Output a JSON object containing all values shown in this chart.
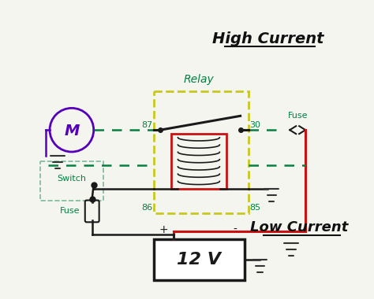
{
  "background_color": "#f5f5f0",
  "high_current_label": "High Current",
  "low_current_label": "Low Current",
  "relay_label": "Relay",
  "battery_label": "12 V",
  "switch_label": "Switch",
  "fuse_label_bottom": "Fuse",
  "fuse_label_top": "Fuse",
  "pin_87": "87",
  "pin_30": "30",
  "pin_86": "86",
  "pin_85": "85",
  "wire_high_color": "#008040",
  "wire_black_color": "#1a1a1a",
  "wire_red_color": "#cc1111",
  "wire_purple_color": "#5500bb",
  "relay_box_color": "#c8c820",
  "motor_color": "#5500bb",
  "coil_color": "#cc1111",
  "label_green": "#008040",
  "label_black": "#111111"
}
